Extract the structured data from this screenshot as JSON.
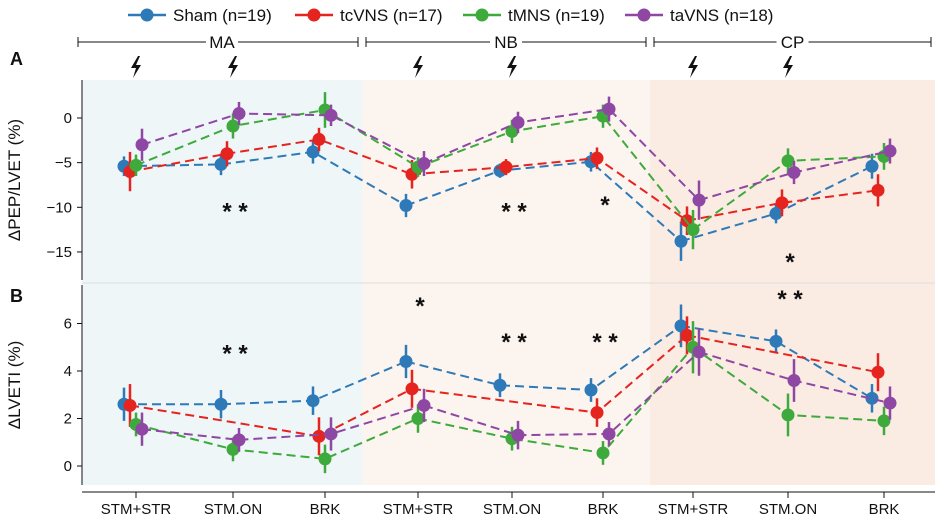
{
  "legend": [
    {
      "name": "Sham (n=19)",
      "color": "#2e7ab8"
    },
    {
      "name": "tcVNS (n=17)",
      "color": "#e5231f"
    },
    {
      "name": "tMNS (n=19)",
      "color": "#3eaa3c"
    },
    {
      "name": "taVNS (n=18)",
      "color": "#8f47a4"
    }
  ],
  "phases": [
    {
      "label": "MA",
      "color": "#eef6f8"
    },
    {
      "label": "NB",
      "color": "#fcf4ee"
    },
    {
      "label": "CP",
      "color": "#fbece3"
    }
  ],
  "stim_icon": "lightning-bolt-icon",
  "chart_data": [
    {
      "panel_label": "A",
      "type": "line",
      "ylabel": "ΔPEP/LVET (%)",
      "ylim": [
        -17.5,
        4
      ],
      "yticks": [
        0,
        -5,
        -10,
        -15
      ],
      "categories": [
        "STM+STR",
        "STM.ON",
        "BRK",
        "STM+STR",
        "STM.ON",
        "BRK",
        "STM+STR",
        "STM.ON",
        "BRK"
      ],
      "series": [
        {
          "name": "Sham (n=19)",
          "values": [
            -5.4,
            -5.2,
            -3.8,
            -9.8,
            -5.9,
            -4.9,
            -13.8,
            -10.7,
            -5.4
          ],
          "errors": [
            1.1,
            1.2,
            1.3,
            1.3,
            0.8,
            1.1,
            2.2,
            1.1,
            1.4
          ]
        },
        {
          "name": "tcVNS (n=17)",
          "values": [
            -6.0,
            -4.0,
            -2.4,
            -6.3,
            -5.5,
            -4.5,
            -11.5,
            -9.5,
            -8.1
          ],
          "errors": [
            2.2,
            1.4,
            1.3,
            1.6,
            0.9,
            1.2,
            1.6,
            1.5,
            1.8
          ]
        },
        {
          "name": "tMNS (n=19)",
          "values": [
            -5.3,
            -0.9,
            0.9,
            -5.5,
            -1.5,
            0.2,
            -12.5,
            -4.8,
            -4.3
          ],
          "errors": [
            1.2,
            1.4,
            2.0,
            1.1,
            1.3,
            1.3,
            2.2,
            1.4,
            1.5
          ]
        },
        {
          "name": "taVNS (n=18)",
          "values": [
            -3.0,
            0.5,
            0.3,
            -5.1,
            -0.5,
            1.0,
            -9.2,
            -6.1,
            -3.7
          ],
          "errors": [
            1.8,
            1.3,
            1.2,
            1.4,
            1.2,
            1.4,
            2.2,
            1.3,
            1.4
          ]
        }
      ],
      "significance": [
        {
          "index": 1,
          "label": "* *",
          "y": -10
        },
        {
          "index": 4,
          "label": "* *",
          "y": -10
        },
        {
          "index": 5,
          "label": "*",
          "y": -9.3
        },
        {
          "index": 7,
          "label": "*",
          "y": -15.7
        }
      ]
    },
    {
      "panel_label": "B",
      "type": "line",
      "ylabel": "ΔLVETI (%)",
      "ylim": [
        -0.7,
        7.2
      ],
      "yticks": [
        0,
        2,
        4,
        6
      ],
      "categories": [
        "STM+STR",
        "STM.ON",
        "BRK",
        "STM+STR",
        "STM.ON",
        "BRK",
        "STM+STR",
        "STM.ON",
        "BRK"
      ],
      "series": [
        {
          "name": "Sham (n=19)",
          "values": [
            2.6,
            2.6,
            2.75,
            4.4,
            3.4,
            3.2,
            5.9,
            5.25,
            2.85
          ],
          "errors": [
            0.7,
            0.6,
            0.6,
            0.7,
            0.5,
            0.5,
            0.9,
            0.5,
            0.6
          ]
        },
        {
          "name": "tcVNS (n=17)",
          "values": [
            2.55,
            null,
            1.25,
            3.25,
            null,
            2.25,
            5.5,
            null,
            3.95
          ],
          "errors": [
            0.9,
            null,
            0.8,
            0.8,
            null,
            0.6,
            0.8,
            null,
            0.8
          ]
        },
        {
          "name": "tMNS (n=19)",
          "values": [
            1.75,
            0.7,
            0.3,
            2.0,
            1.15,
            0.55,
            5.0,
            2.15,
            1.9
          ],
          "errors": [
            0.5,
            0.5,
            0.6,
            0.6,
            0.5,
            0.5,
            1.1,
            0.9,
            0.6
          ]
        },
        {
          "name": "taVNS (n=18)",
          "values": [
            1.55,
            1.1,
            1.35,
            2.55,
            1.3,
            1.35,
            4.8,
            3.6,
            2.65
          ],
          "errors": [
            0.7,
            0.5,
            0.7,
            0.7,
            0.6,
            0.5,
            1.0,
            0.9,
            0.7
          ]
        }
      ],
      "significance": [
        {
          "index": 1,
          "label": "* *",
          "y": 4.9
        },
        {
          "index": 3,
          "label": "*",
          "y": 6.9
        },
        {
          "index": 4,
          "label": "* *",
          "y": 5.4
        },
        {
          "index": 5,
          "label": "* *",
          "y": 5.4
        },
        {
          "index": 7,
          "label": "* *",
          "y": 7.2
        }
      ]
    }
  ]
}
